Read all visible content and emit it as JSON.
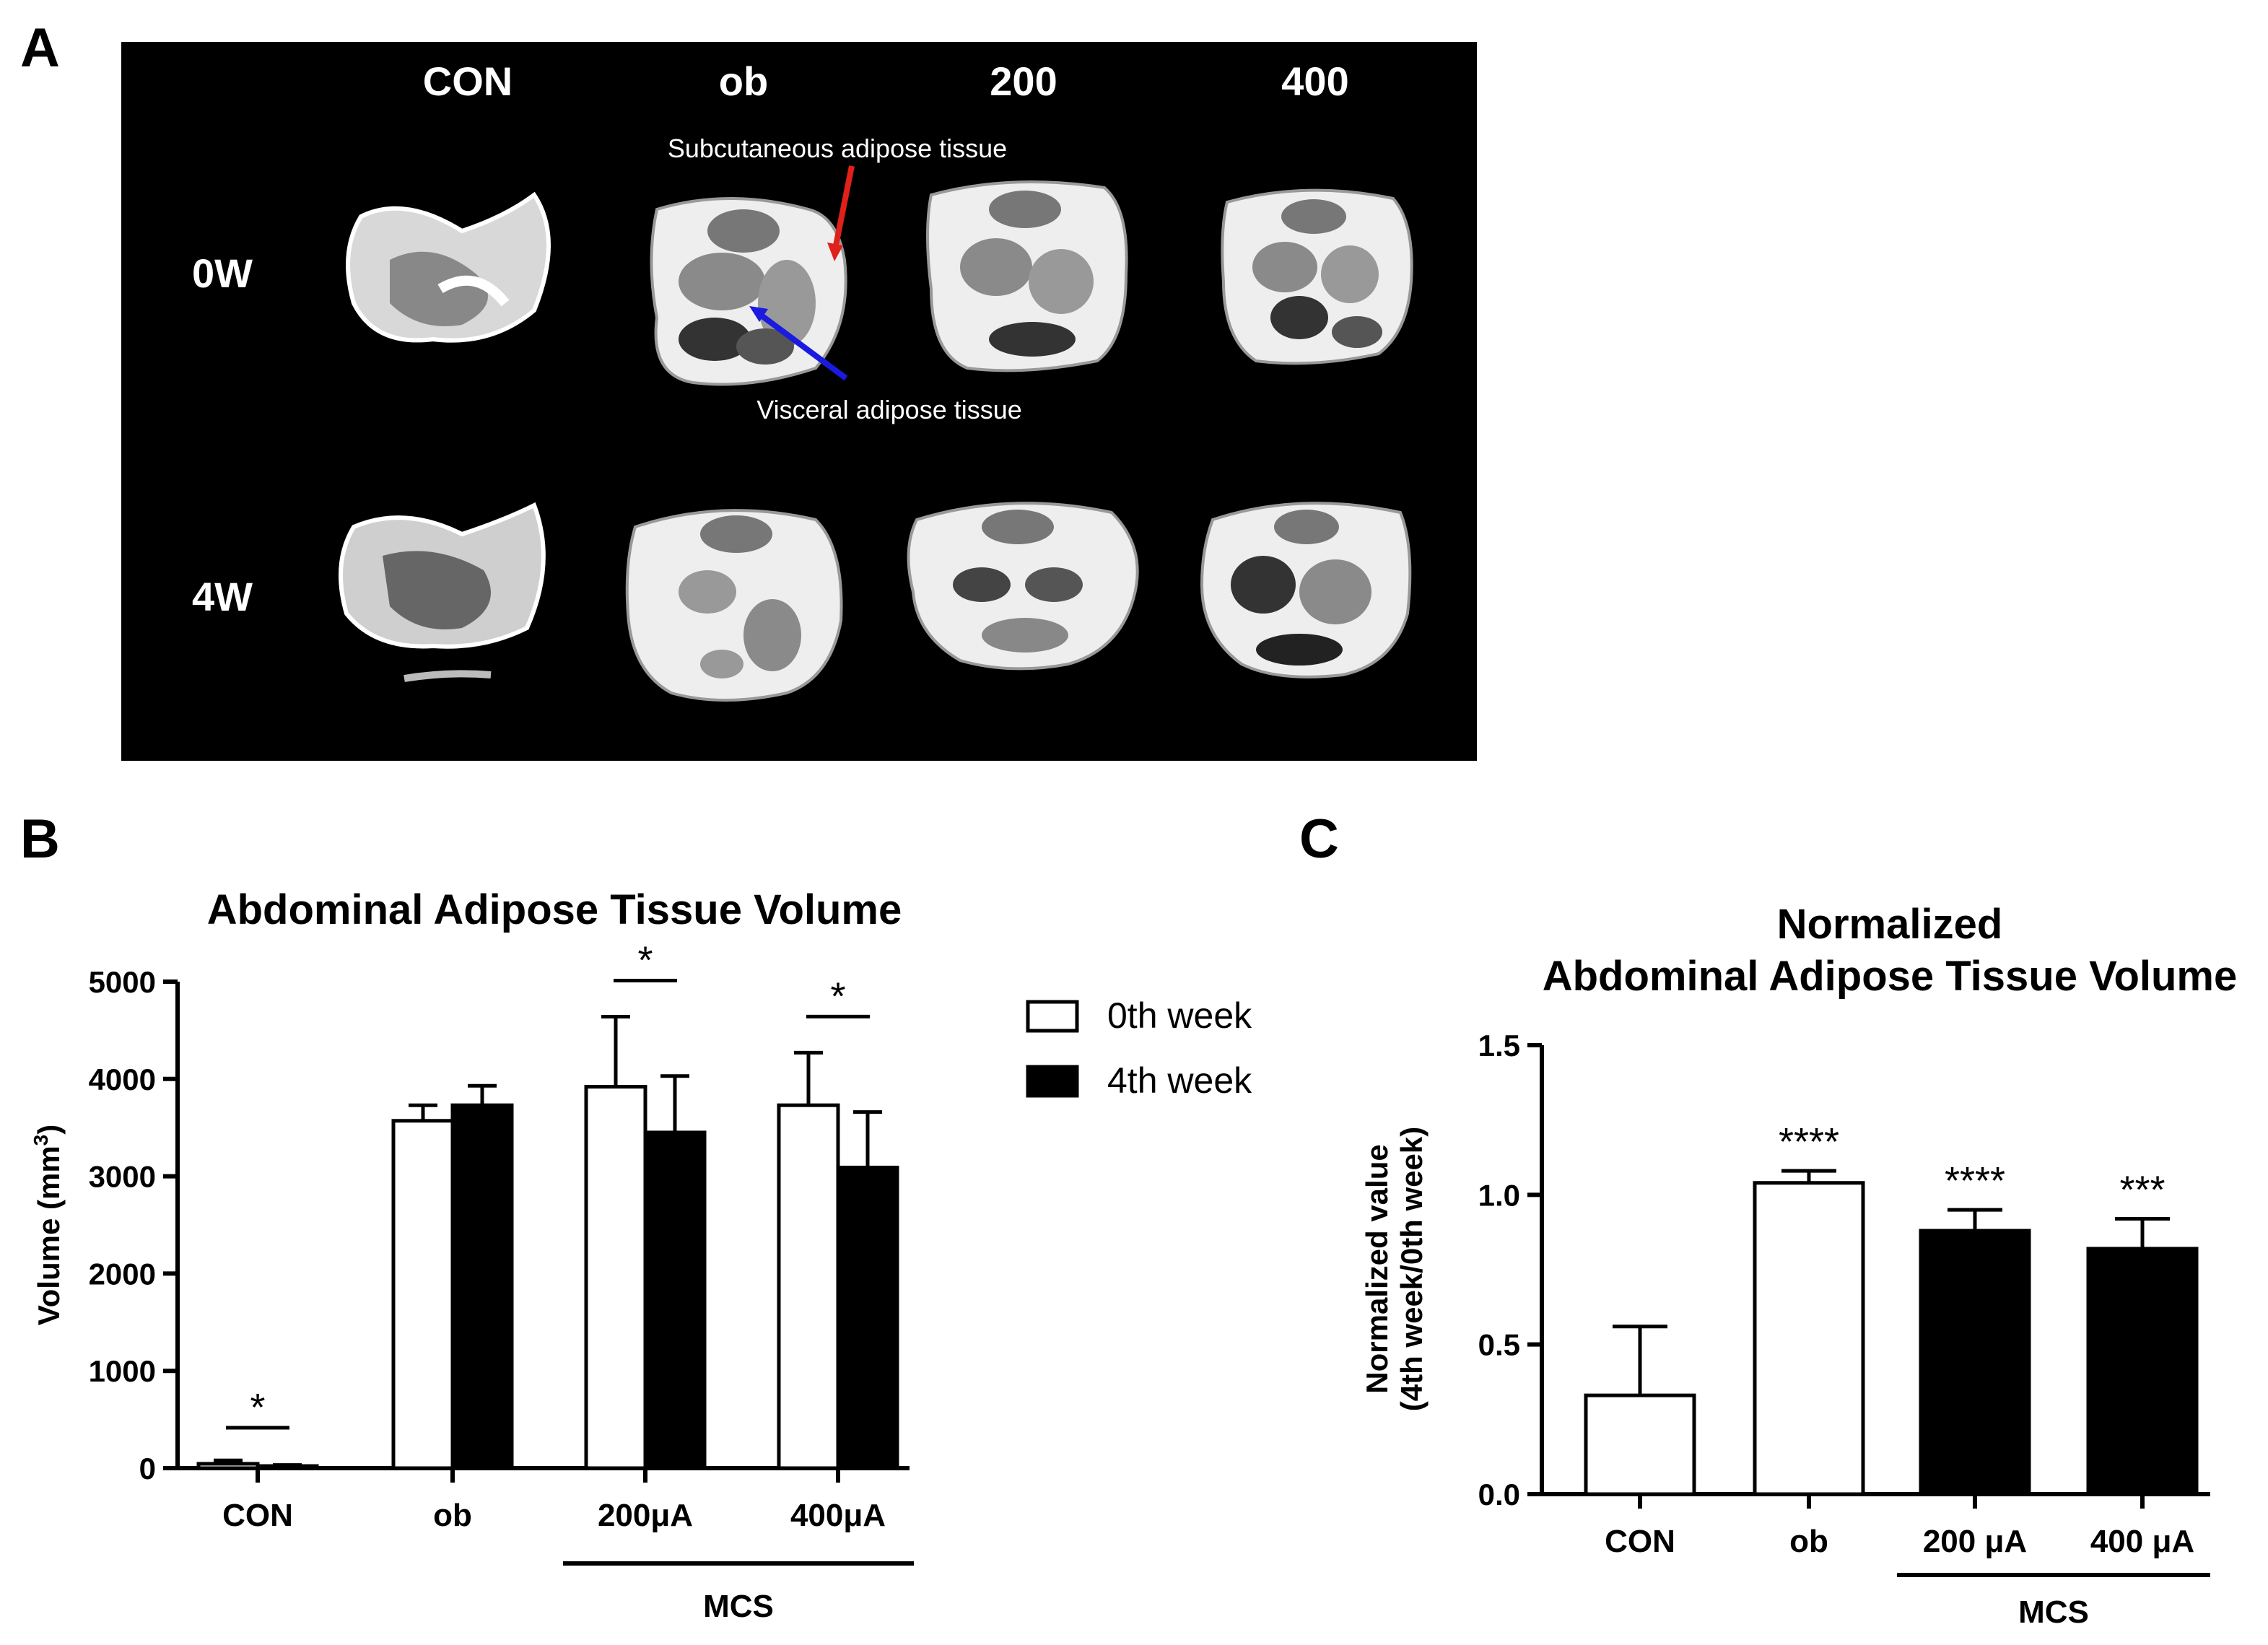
{
  "figure": {
    "panel_labels": [
      "A",
      "B",
      "C"
    ]
  },
  "panel_a": {
    "column_headers": [
      "CON",
      "ob",
      "200",
      "400"
    ],
    "row_labels": [
      "0W",
      "4W"
    ],
    "annotations": {
      "subcutaneous": "Subcutaneous adipose tissue",
      "visceral": "Visceral adipose tissue"
    },
    "colors": {
      "background": "#000000",
      "subcutaneous_arrow": "#e0201a",
      "visceral_arrow": "#1a1ae0"
    }
  },
  "chart_data": [
    {
      "id": "panel_b",
      "type": "bar",
      "title": "Abdominal Adipose Tissue Volume",
      "ylabel": "Volume (mm",
      "ylabel_sup": "3",
      "ylabel_end": ")",
      "xlabel": "",
      "ylim": [
        0,
        5000
      ],
      "yticks": [
        "0",
        "1000",
        "2000",
        "3000",
        "4000",
        "5000"
      ],
      "yticks_values": [
        0,
        1000,
        2000,
        3000,
        4000,
        5000
      ],
      "categories": [
        "CON",
        "ob",
        "200μA",
        "400μA"
      ],
      "series": [
        {
          "name": "0th week",
          "fill": "#ffffff",
          "values": [
            45,
            3570,
            3920,
            3730
          ],
          "errors": [
            35,
            160,
            720,
            540
          ]
        },
        {
          "name": "4th week",
          "fill": "#000000",
          "values": [
            22,
            3730,
            3450,
            3090
          ],
          "errors": [
            10,
            200,
            580,
            570
          ]
        }
      ],
      "significance": [
        {
          "category": "CON",
          "label": "*"
        },
        {
          "category": "200μA",
          "label": "*"
        },
        {
          "category": "400μA",
          "label": "*"
        }
      ],
      "group_label": "MCS",
      "legend_position": "right"
    },
    {
      "id": "panel_c",
      "type": "bar",
      "title": [
        "Normalized",
        "Abdominal Adipose Tissue Volume"
      ],
      "ylabel": [
        "Normalized value",
        "(4th week/0th week)"
      ],
      "ylim": [
        0,
        1.5
      ],
      "yticks": [
        "0.0",
        "0.5",
        "1.0",
        "1.5"
      ],
      "yticks_values": [
        0,
        0.5,
        1.0,
        1.5
      ],
      "categories": [
        "CON",
        "ob",
        "200 μA",
        "400 μA"
      ],
      "values": [
        0.33,
        1.04,
        0.88,
        0.82
      ],
      "errors": [
        0.23,
        0.04,
        0.07,
        0.1
      ],
      "fills": [
        "#ffffff",
        "#ffffff",
        "#000000",
        "#000000"
      ],
      "significance": [
        "",
        "****",
        "****",
        "***"
      ],
      "group_label": "MCS"
    }
  ]
}
